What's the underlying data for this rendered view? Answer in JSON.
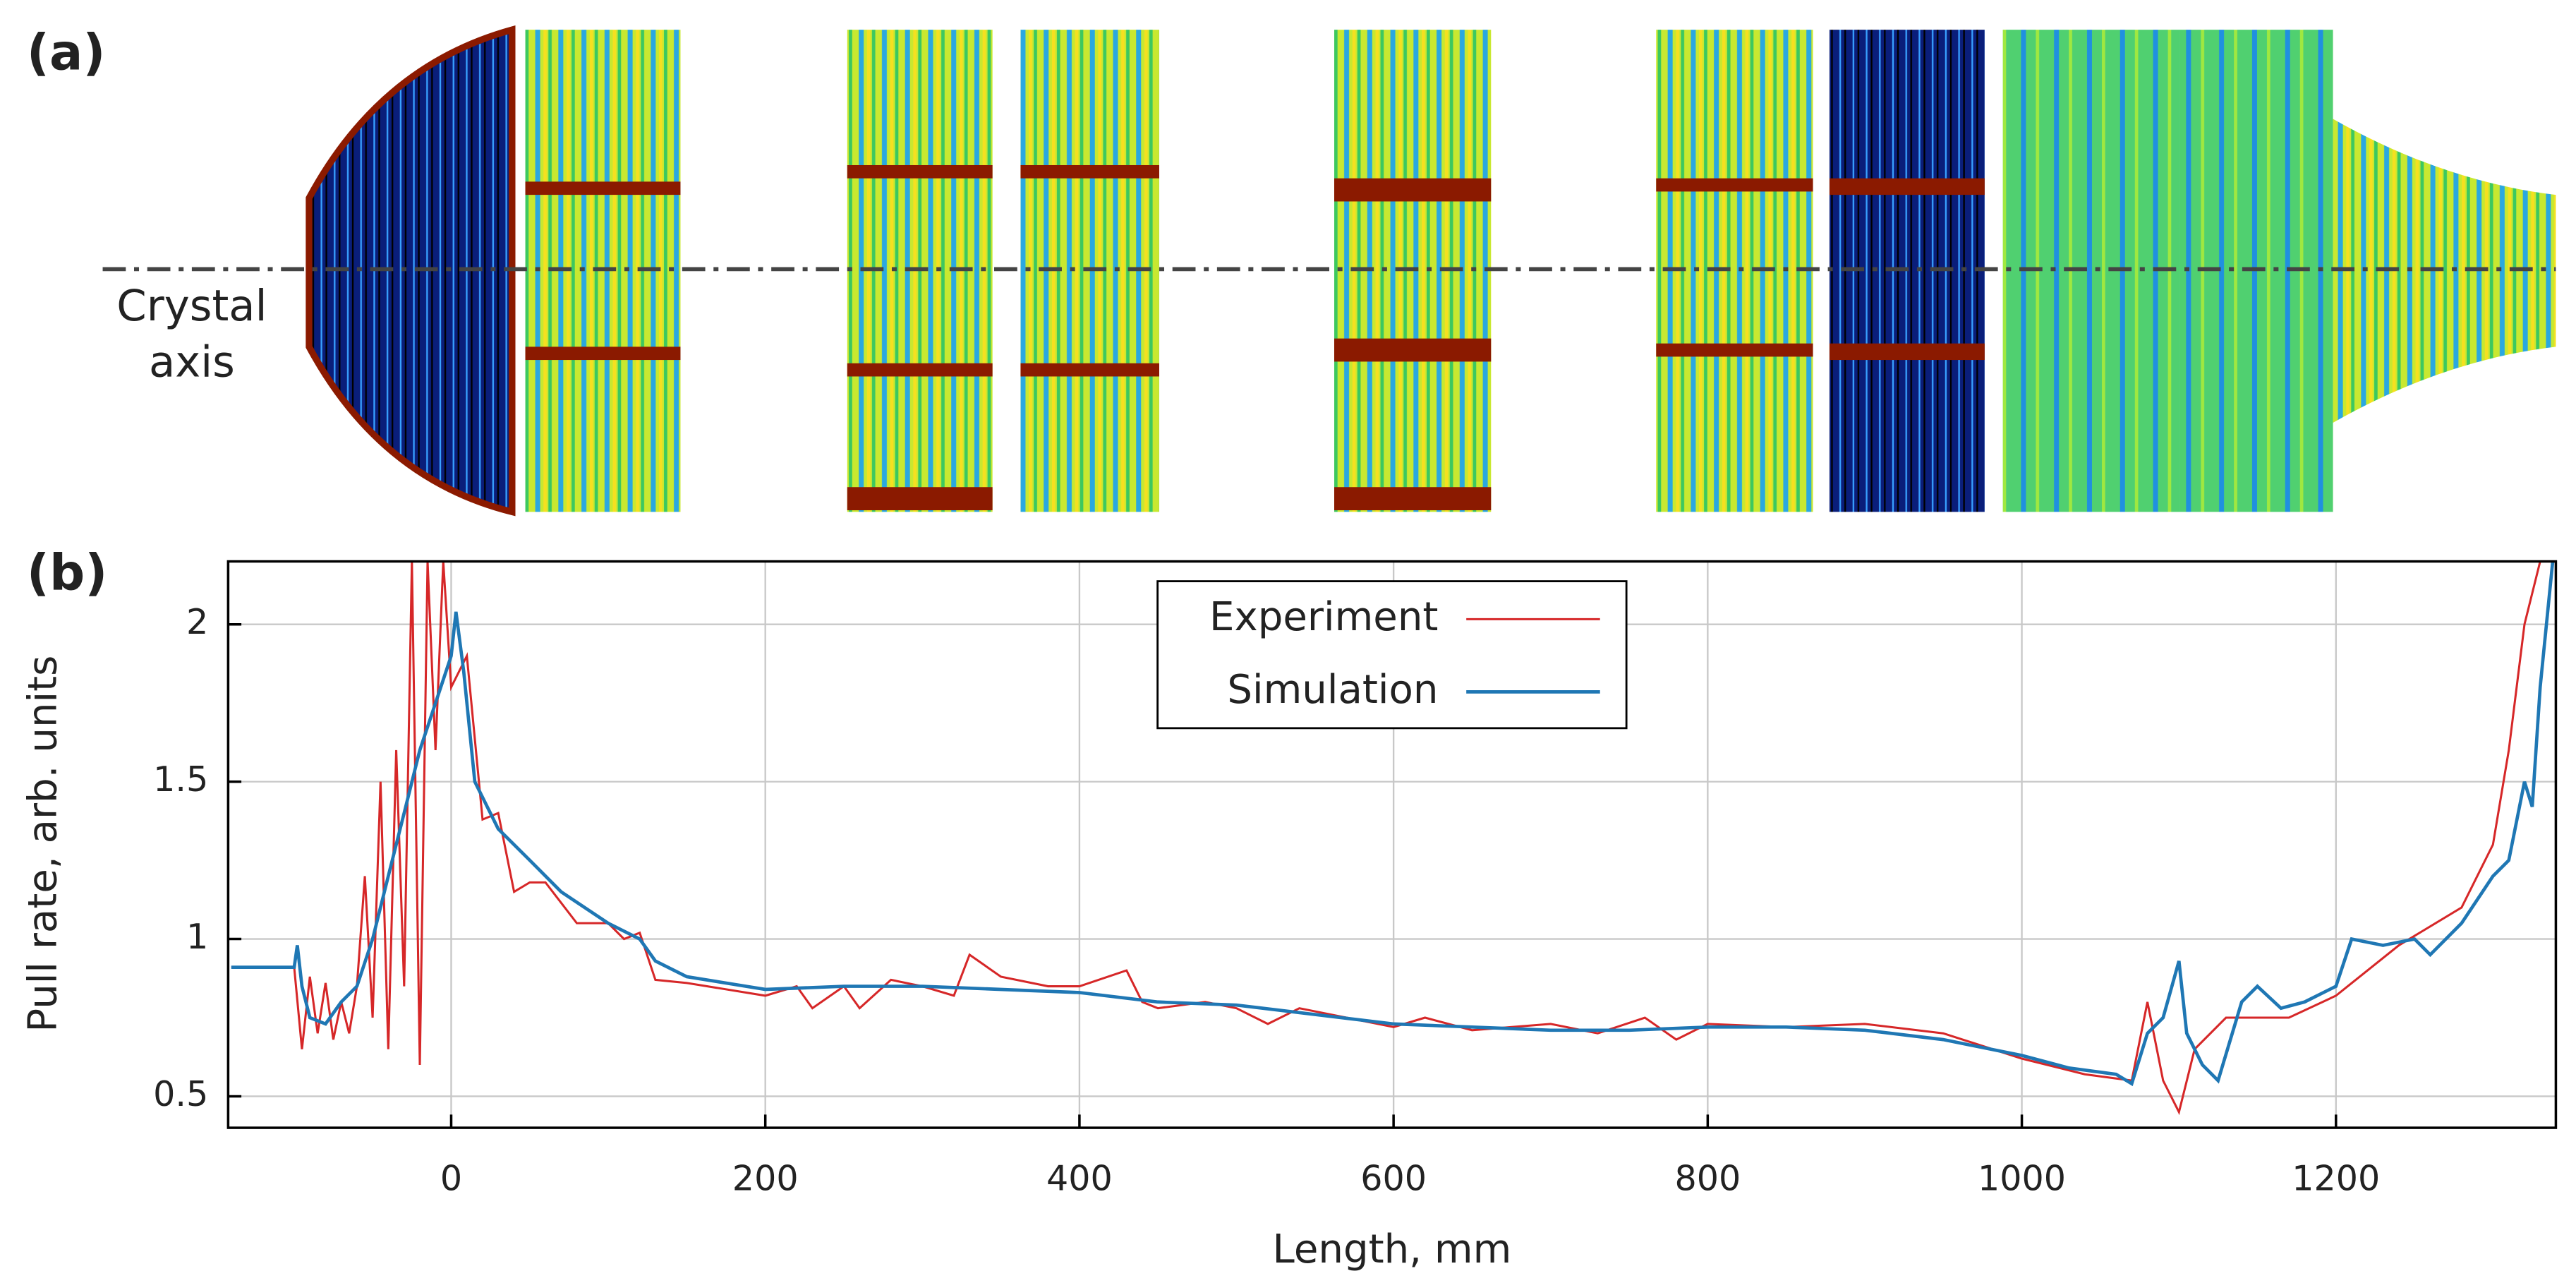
{
  "chart_data": {
    "type": "line",
    "annotations": [
      "(a)",
      "(b)",
      "Crystal",
      "axis"
    ],
    "xlabel": "Length, mm",
    "ylabel": "Pull rate, arb. units",
    "xlim": [
      -142,
      1340
    ],
    "ylim": [
      0.4,
      2.2
    ],
    "xticks": [
      0,
      200,
      400,
      600,
      800,
      1000,
      1200
    ],
    "yticks": [
      0.5,
      1,
      1.5,
      2
    ],
    "grid": true,
    "legend": "upper center",
    "series": [
      {
        "name": "Experiment",
        "color": "#d62728",
        "x": [
          -140,
          -100,
          -95,
          -90,
          -85,
          -80,
          -75,
          -70,
          -65,
          -60,
          -55,
          -50,
          -45,
          -40,
          -35,
          -30,
          -25,
          -20,
          -15,
          -10,
          -5,
          0,
          10,
          20,
          30,
          40,
          50,
          60,
          80,
          100,
          110,
          120,
          130,
          150,
          200,
          220,
          230,
          250,
          260,
          280,
          300,
          320,
          330,
          350,
          380,
          400,
          430,
          440,
          450,
          480,
          500,
          520,
          540,
          600,
          620,
          650,
          700,
          730,
          760,
          780,
          800,
          850,
          900,
          950,
          1000,
          1040,
          1070,
          1080,
          1090,
          1100,
          1110,
          1130,
          1170,
          1200,
          1240,
          1280,
          1300,
          1310,
          1320,
          1330
        ],
        "values": [
          0.91,
          0.91,
          0.65,
          0.88,
          0.7,
          0.86,
          0.68,
          0.8,
          0.7,
          0.85,
          1.2,
          0.75,
          1.5,
          0.65,
          1.6,
          0.85,
          2.2,
          0.6,
          2.2,
          1.6,
          2.2,
          1.8,
          1.9,
          1.38,
          1.4,
          1.15,
          1.18,
          1.18,
          1.05,
          1.05,
          1.0,
          1.02,
          0.87,
          0.86,
          0.82,
          0.85,
          0.78,
          0.85,
          0.78,
          0.87,
          0.85,
          0.82,
          0.95,
          0.88,
          0.85,
          0.85,
          0.9,
          0.8,
          0.78,
          0.8,
          0.78,
          0.73,
          0.78,
          0.72,
          0.75,
          0.71,
          0.73,
          0.7,
          0.75,
          0.68,
          0.73,
          0.72,
          0.73,
          0.7,
          0.62,
          0.57,
          0.55,
          0.8,
          0.55,
          0.45,
          0.65,
          0.75,
          0.75,
          0.82,
          0.98,
          1.1,
          1.3,
          1.6,
          2.0,
          2.2
        ]
      },
      {
        "name": "Simulation",
        "color": "#1f77b4",
        "x": [
          -140,
          -100,
          -98,
          -95,
          -90,
          -80,
          -70,
          -60,
          -50,
          -40,
          -30,
          -20,
          -10,
          0,
          3,
          8,
          15,
          30,
          50,
          70,
          100,
          120,
          130,
          150,
          200,
          250,
          300,
          350,
          400,
          450,
          500,
          550,
          600,
          650,
          700,
          750,
          800,
          850,
          900,
          950,
          1000,
          1030,
          1060,
          1070,
          1080,
          1090,
          1100,
          1105,
          1115,
          1125,
          1140,
          1150,
          1165,
          1180,
          1200,
          1210,
          1230,
          1250,
          1260,
          1280,
          1300,
          1310,
          1320,
          1325,
          1330,
          1338
        ],
        "values": [
          0.91,
          0.91,
          0.98,
          0.85,
          0.75,
          0.73,
          0.8,
          0.85,
          1.0,
          1.2,
          1.4,
          1.6,
          1.75,
          1.9,
          2.04,
          1.85,
          1.5,
          1.35,
          1.25,
          1.15,
          1.05,
          1.0,
          0.93,
          0.88,
          0.84,
          0.85,
          0.85,
          0.84,
          0.83,
          0.8,
          0.79,
          0.76,
          0.73,
          0.72,
          0.71,
          0.71,
          0.72,
          0.72,
          0.71,
          0.68,
          0.63,
          0.59,
          0.57,
          0.54,
          0.7,
          0.75,
          0.93,
          0.7,
          0.6,
          0.55,
          0.8,
          0.85,
          0.78,
          0.8,
          0.85,
          1.0,
          0.98,
          1.0,
          0.95,
          1.05,
          1.2,
          1.25,
          1.5,
          1.42,
          1.8,
          2.2
        ]
      }
    ]
  }
}
